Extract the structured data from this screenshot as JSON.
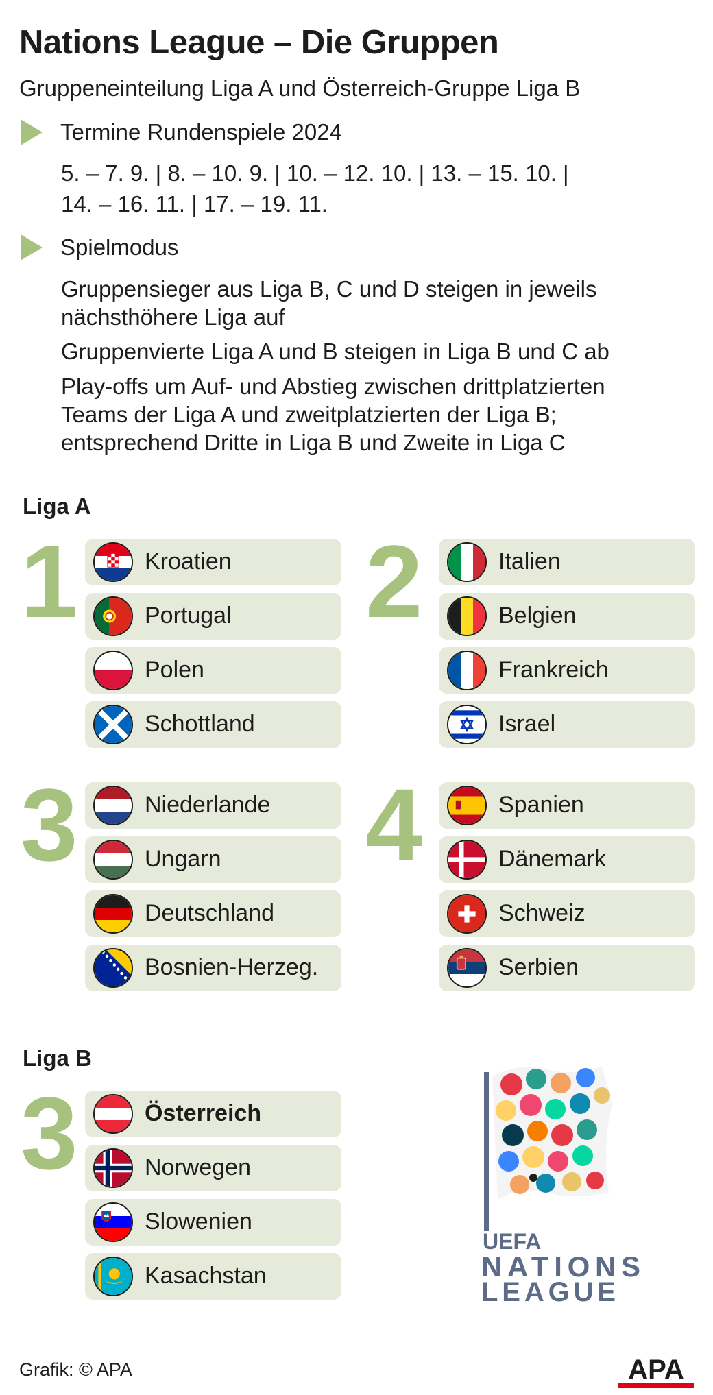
{
  "title": "Nations League – Die Gruppen",
  "subtitle": "Gruppeneinteilung Liga A und Österreich-Gruppe Liga B",
  "sections": [
    {
      "heading": "Termine Rundenspiele 2024",
      "lines": [
        "5. – 7. 9. | 8. – 10. 9. | 10. – 12. 10. | 13. – 15. 10. |",
        "14. – 16. 11. | 17. – 19. 11."
      ]
    },
    {
      "heading": "Spielmodus",
      "lines": [
        "Gruppensieger aus Liga B, C und D steigen in jeweils",
        "nächsthöhere Liga auf",
        "Gruppenvierte Liga A und B steigen in Liga B und C ab",
        "Play-offs um Auf- und Abstieg zwischen drittplatzierten",
        "Teams der Liga A und zweitplatzierten der Liga B;",
        "entsprechend Dritte in Liga B und Zweite in Liga C"
      ]
    }
  ],
  "liga_a": {
    "title": "Liga A",
    "groups": [
      {
        "number": "1",
        "teams": [
          {
            "name": "Kroatien",
            "flag": "croatia-flag-icon"
          },
          {
            "name": "Portugal",
            "flag": "portugal-flag-icon"
          },
          {
            "name": "Polen",
            "flag": "poland-flag-icon"
          },
          {
            "name": "Schottland",
            "flag": "scotland-flag-icon"
          }
        ]
      },
      {
        "number": "2",
        "teams": [
          {
            "name": "Italien",
            "flag": "italy-flag-icon"
          },
          {
            "name": "Belgien",
            "flag": "belgium-flag-icon"
          },
          {
            "name": "Frankreich",
            "flag": "france-flag-icon"
          },
          {
            "name": "Israel",
            "flag": "israel-flag-icon"
          }
        ]
      },
      {
        "number": "3",
        "teams": [
          {
            "name": "Niederlande",
            "flag": "netherlands-flag-icon"
          },
          {
            "name": "Ungarn",
            "flag": "hungary-flag-icon"
          },
          {
            "name": "Deutschland",
            "flag": "germany-flag-icon"
          },
          {
            "name": "Bosnien-Herzeg.",
            "flag": "bosnia-flag-icon"
          }
        ]
      },
      {
        "number": "4",
        "teams": [
          {
            "name": "Spanien",
            "flag": "spain-flag-icon"
          },
          {
            "name": "Dänemark",
            "flag": "denmark-flag-icon"
          },
          {
            "name": "Schweiz",
            "flag": "switzerland-flag-icon"
          },
          {
            "name": "Serbien",
            "flag": "serbia-flag-icon"
          }
        ]
      }
    ]
  },
  "liga_b": {
    "title": "Liga B",
    "groups": [
      {
        "number": "3",
        "teams": [
          {
            "name": "Österreich",
            "flag": "austria-flag-icon",
            "highlight": true
          },
          {
            "name": "Norwegen",
            "flag": "norway-flag-icon"
          },
          {
            "name": "Slowenien",
            "flag": "slovenia-flag-icon"
          },
          {
            "name": "Kasachstan",
            "flag": "kazakhstan-flag-icon"
          }
        ]
      }
    ]
  },
  "logo": {
    "line1": "UEFA",
    "line2": "NATIONS",
    "line3": "LEAGUE"
  },
  "credit": "Grafik: © APA",
  "agency_logo": "APA",
  "colors": {
    "accent": "#a7c27e",
    "team_bg": "#e6eada",
    "logo_text": "#5c6b88",
    "apa_red": "#e2001a"
  }
}
